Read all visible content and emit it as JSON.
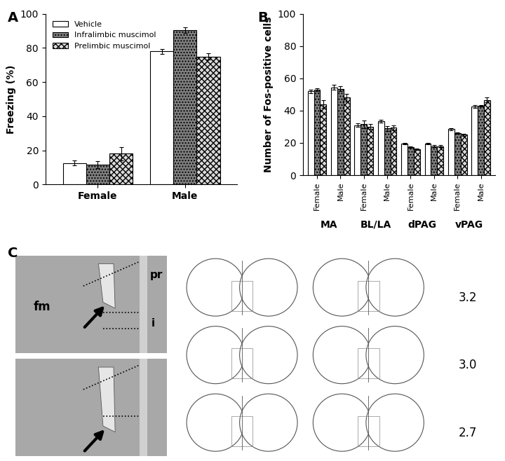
{
  "chart_data": [
    {
      "type": "bar",
      "title": "A",
      "y_label": "Freezing (%)",
      "categories": [
        "Female",
        "Male"
      ],
      "series": [
        {
          "name": "Vehicle",
          "color": "#ffffff",
          "values": [
            12.5,
            78
          ],
          "errors": [
            1.5,
            1.5
          ]
        },
        {
          "name": "Infralimbic muscimol",
          "color": "#7f7f7f",
          "values": [
            11.5,
            90.5
          ],
          "errors": [
            2,
            1.5
          ]
        },
        {
          "name": "Prelimbic muscimol",
          "color": "#d9d9d9",
          "values": [
            18,
            75
          ],
          "errors": [
            4,
            2
          ]
        }
      ],
      "ylim": [
        0,
        100
      ],
      "yticks": [
        0,
        20,
        40,
        60,
        80,
        100
      ],
      "legend": "upper left"
    },
    {
      "type": "bar",
      "title": "B",
      "y_label": "Number of Fos-positive cells",
      "categories": [
        "Female",
        "Male",
        "Female",
        "Male",
        "Female",
        "Male",
        "Female",
        "Male"
      ],
      "groups": [
        "MA",
        "BL/LA",
        "dPAG",
        "vPAG"
      ],
      "series": [
        {
          "name": "Vehicle",
          "color": "#ffffff",
          "values": [
            52,
            54.5,
            31,
            33.5,
            19.5,
            19.5,
            28.5,
            42.5
          ],
          "errors": [
            1.2,
            1.5,
            1,
            1,
            0.5,
            0.5,
            0.6,
            1
          ]
        },
        {
          "name": "Infralimbic muscimol",
          "color": "#7f7f7f",
          "values": [
            53,
            53.5,
            31.5,
            29,
            17.5,
            18,
            26,
            43
          ],
          "errors": [
            1,
            1.5,
            2.5,
            1.5,
            0.5,
            0.5,
            0.5,
            0.6
          ]
        },
        {
          "name": "Prelimbic muscimol",
          "color": "#d9d9d9",
          "values": [
            44,
            48,
            30,
            29.5,
            16,
            18,
            25,
            46.5
          ],
          "errors": [
            2.5,
            2.5,
            1.5,
            1.5,
            0.5,
            0.6,
            0.8,
            1.5
          ]
        }
      ],
      "ylim": [
        0,
        100
      ],
      "yticks": [
        0,
        20,
        40,
        60,
        80,
        100
      ]
    }
  ],
  "panel_c": {
    "title": "C",
    "photo_labels": [
      "fm",
      "pr",
      "i"
    ],
    "atlas_levels": [
      3.2,
      3.0,
      2.7
    ]
  }
}
